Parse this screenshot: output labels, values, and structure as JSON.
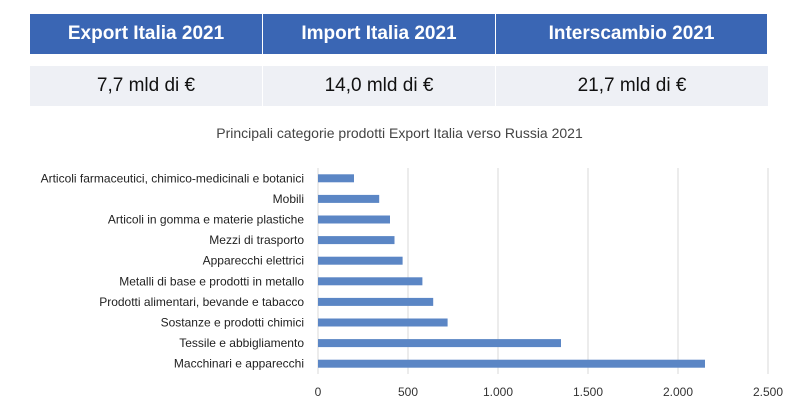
{
  "kpis": {
    "headers": [
      "Export Italia 2021",
      "Import Italia 2021",
      "Interscambio 2021"
    ],
    "values": [
      "7,7 mld di €",
      "14,0 mld di €",
      "21,7 mld di €"
    ]
  },
  "colors": {
    "header_bg": "#3a66b4",
    "value_bg": "#eef0f5",
    "bar": "#5b86c5",
    "grid": "#d9d9d9"
  },
  "chart_data": {
    "type": "bar",
    "orientation": "horizontal",
    "title": "Principali categorie prodotti Export Italia verso Russia 2021",
    "categories": [
      "Articoli farmaceutici, chimico-medicinali e botanici",
      "Mobili",
      "Articoli in gomma e materie plastiche",
      "Mezzi di trasporto",
      "Apparecchi elettrici",
      "Metalli di base e prodotti in metallo",
      "Prodotti alimentari, bevande e tabacco",
      "Sostanze e prodotti chimici",
      "Tessile e  abbigliamento",
      "Macchinari e apparecchi"
    ],
    "values": [
      200,
      340,
      400,
      425,
      470,
      580,
      640,
      720,
      1350,
      2150
    ],
    "xlim": [
      0,
      2500
    ],
    "xticks": [
      0,
      500,
      1000,
      1500,
      2000,
      2500
    ],
    "xtick_labels": [
      "0",
      "500",
      "1.000",
      "1.500",
      "2.000",
      "2.500"
    ],
    "grid": true,
    "legend": "none"
  }
}
